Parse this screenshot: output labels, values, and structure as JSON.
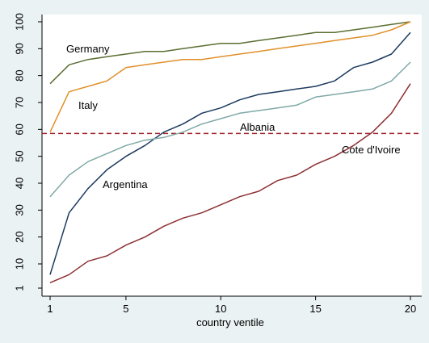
{
  "chart_data": {
    "type": "line",
    "xlabel": "country ventile",
    "ylabel": "",
    "xlim": [
      1,
      20
    ],
    "ylim": [
      1,
      100
    ],
    "x_ticks": [
      1,
      5,
      10,
      15,
      20
    ],
    "y_ticks": [
      1,
      10,
      20,
      30,
      40,
      50,
      60,
      70,
      80,
      90,
      100
    ],
    "grid": false,
    "legend": "none",
    "x": [
      1,
      2,
      3,
      4,
      5,
      6,
      7,
      8,
      9,
      10,
      11,
      12,
      13,
      14,
      15,
      16,
      17,
      18,
      19,
      20
    ],
    "series": [
      {
        "name": "Germany",
        "color": "#5a6f32",
        "values": [
          77,
          84,
          86,
          87,
          88,
          89,
          89,
          90,
          91,
          92,
          92,
          93,
          94,
          95,
          96,
          96,
          97,
          98,
          99,
          100
        ]
      },
      {
        "name": "Italy",
        "color": "#e1902a",
        "values": [
          59,
          74,
          76,
          78,
          83,
          84,
          85,
          86,
          86,
          87,
          88,
          89,
          90,
          91,
          92,
          93,
          94,
          95,
          97,
          100
        ]
      },
      {
        "name": "Argentina",
        "color": "#1c3a5e",
        "values": [
          6,
          29,
          38,
          45,
          50,
          54,
          59,
          62,
          66,
          68,
          71,
          73,
          74,
          75,
          76,
          78,
          83,
          85,
          88,
          96
        ]
      },
      {
        "name": "",
        "color": "#7fa9a6",
        "values": [
          35,
          43,
          48,
          51,
          54,
          56,
          57,
          59,
          62,
          64,
          66,
          67,
          68,
          69,
          72,
          73,
          74,
          75,
          78,
          85
        ]
      },
      {
        "name": "Cote d'Ivoire",
        "color": "#8d3032",
        "values": [
          3,
          6,
          11,
          13,
          17,
          20,
          24,
          27,
          29,
          32,
          35,
          37,
          41,
          43,
          47,
          50,
          54,
          59,
          66,
          77
        ]
      }
    ],
    "reference_line": {
      "label": "Albania",
      "y": 58.5,
      "color": "#a0202a",
      "style": "dashed"
    }
  }
}
